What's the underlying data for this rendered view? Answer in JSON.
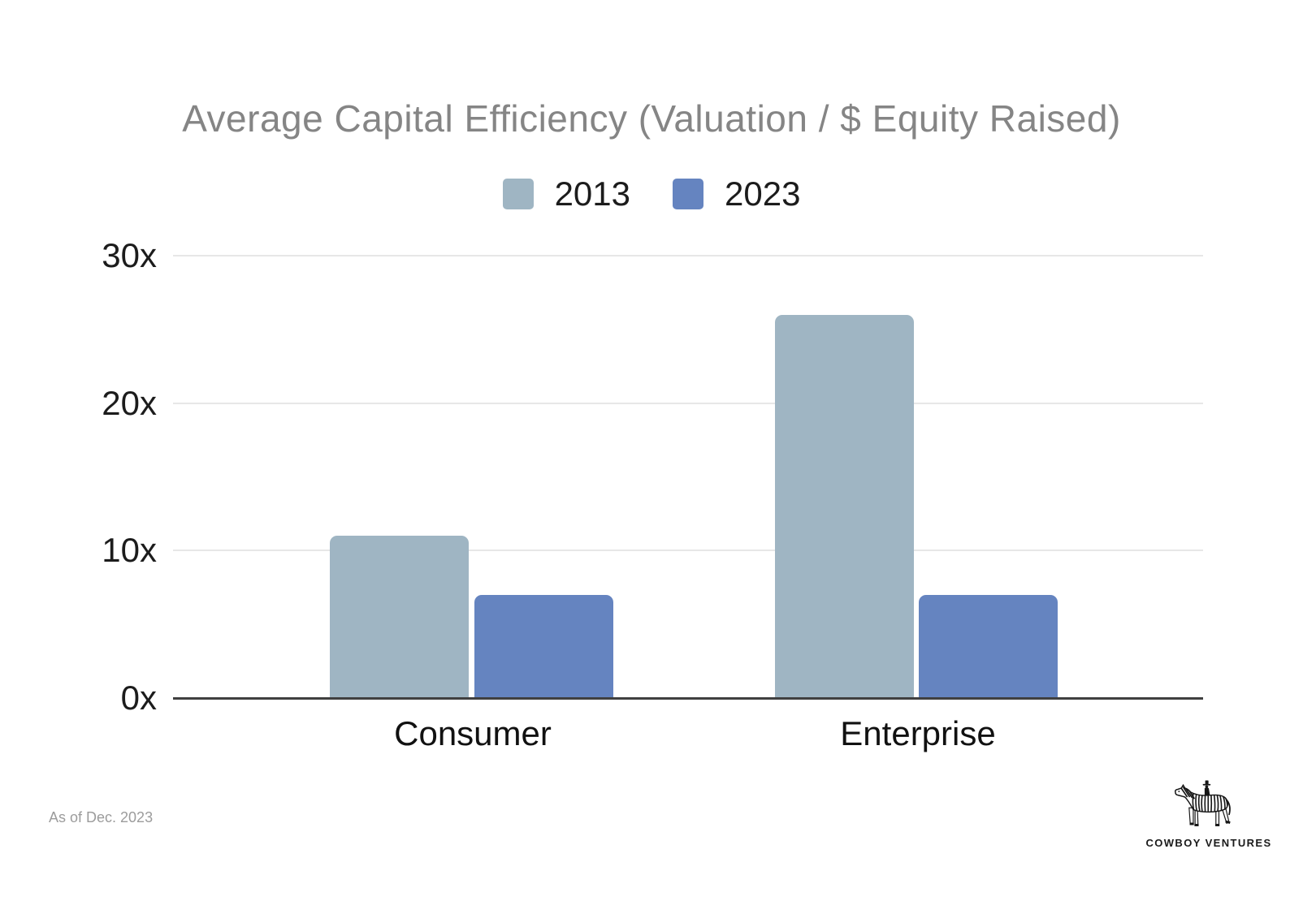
{
  "title": "Average Capital Efficiency (Valuation / $ Equity Raised)",
  "chart_data": {
    "type": "bar",
    "title": "Average Capital Efficiency (Valuation / $ Equity Raised)",
    "categories": [
      "Consumer",
      "Enterprise"
    ],
    "series": [
      {
        "name": "2013",
        "color": "#9fb5c3",
        "values": [
          11,
          26
        ]
      },
      {
        "name": "2023",
        "color": "#6584c0",
        "values": [
          7,
          7
        ]
      }
    ],
    "xlabel": "",
    "ylabel": "",
    "ylim": [
      0,
      30
    ],
    "yticks": [
      "0x",
      "10x",
      "20x",
      "30x"
    ],
    "ytick_values": [
      0,
      10,
      20,
      30
    ],
    "grid": true,
    "legend_position": "top"
  },
  "footnote": "As of Dec. 2023",
  "logo": {
    "text": "COWBOY VENTURES",
    "icon": "zebra-with-cowboy-rider"
  },
  "colors": {
    "title_text": "#858585",
    "tick_text": "#1c1c1c",
    "gridline": "#e7e7e7",
    "axis_line": "#404040",
    "footnote_text": "#9c9c9c",
    "background": "#ffffff"
  }
}
